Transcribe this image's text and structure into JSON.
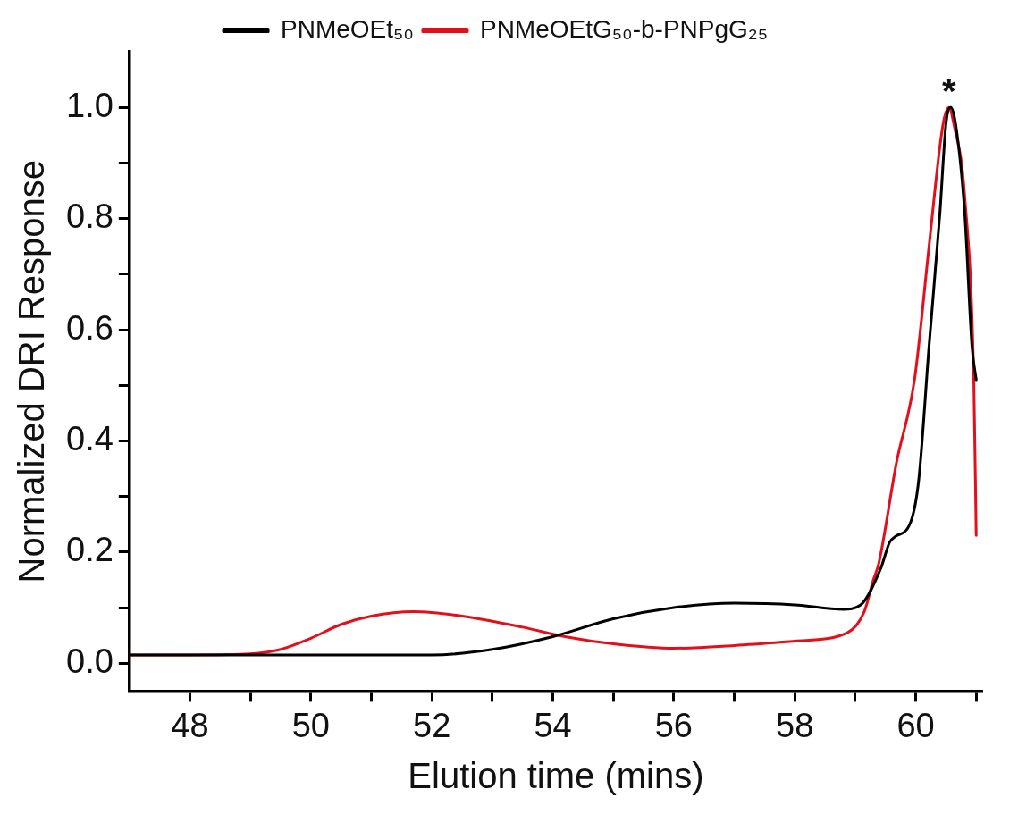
{
  "chart_data": {
    "type": "line",
    "xlabel": "Elution time (mins)",
    "ylabel": "Normalized DRI Response",
    "xlim": [
      47,
      61.1
    ],
    "ylim": [
      -0.05,
      1.1
    ],
    "xticks": [
      48,
      {
        "value": 49,
        "label": null
      },
      50,
      {
        "value": 51,
        "label": null
      },
      52,
      {
        "value": 53,
        "label": null
      },
      54,
      {
        "value": 55,
        "label": null
      },
      56,
      {
        "value": 57,
        "label": null
      },
      58,
      {
        "value": 59,
        "label": null
      },
      60,
      {
        "value": 61,
        "label": null
      }
    ],
    "yticks": [
      {
        "value": 0,
        "label": "0.0"
      },
      {
        "value": 0.1,
        "label": null
      },
      {
        "value": 0.2,
        "label": "0.2"
      },
      {
        "value": 0.3,
        "label": null
      },
      {
        "value": 0.4,
        "label": "0.4"
      },
      {
        "value": 0.5,
        "label": null
      },
      {
        "value": 0.6,
        "label": "0.6"
      },
      {
        "value": 0.7,
        "label": null
      },
      {
        "value": 0.8,
        "label": "0.8"
      },
      {
        "value": 0.9,
        "label": null
      },
      {
        "value": 1,
        "label": "1.0"
      }
    ],
    "grid": false,
    "legend": "top",
    "marker": "none",
    "line_style": "solid",
    "annotations": [
      {
        "text": "*",
        "x": 60.55,
        "y": 1.0
      }
    ],
    "series": [
      {
        "name": "PNMeOEt₅₀",
        "color": "#000000",
        "x": [
          47,
          48,
          49,
          50,
          51,
          52,
          53,
          54,
          55,
          56,
          57,
          58,
          58.8,
          59.09,
          59.42,
          59.57,
          59.65,
          59.92,
          60.05,
          60.22,
          60.4,
          60.5,
          60.58,
          60.66,
          60.81,
          60.93,
          61.0
        ],
        "values": [
          0.015,
          0.015,
          0.015,
          0.015,
          0.015,
          0.015,
          0.025,
          0.048,
          0.08,
          0.1,
          0.108,
          0.105,
          0.097,
          0.105,
          0.17,
          0.218,
          0.227,
          0.255,
          0.33,
          0.57,
          0.81,
          0.97,
          1.0,
          0.97,
          0.81,
          0.57,
          0.51
        ]
      },
      {
        "name": "PNMeOEtG₅₀-b-PNPgG₂₅",
        "color": "#e3101c",
        "x": [
          47,
          48,
          49,
          49.5,
          50,
          50.5,
          51,
          51.7,
          52.5,
          53.5,
          54.2,
          55,
          56,
          57,
          58,
          58.87,
          59.15,
          59.3,
          59.39,
          59.68,
          59.98,
          60.22,
          60.4,
          60.47,
          60.55,
          60.63,
          60.81,
          60.96,
          61.0
        ],
        "values": [
          0.015,
          0.015,
          0.017,
          0.025,
          0.045,
          0.07,
          0.085,
          0.093,
          0.085,
          0.065,
          0.048,
          0.035,
          0.027,
          0.032,
          0.04,
          0.055,
          0.093,
          0.15,
          0.18,
          0.36,
          0.51,
          0.75,
          0.93,
          0.98,
          1.0,
          0.97,
          0.84,
          0.51,
          0.23
        ]
      }
    ]
  }
}
